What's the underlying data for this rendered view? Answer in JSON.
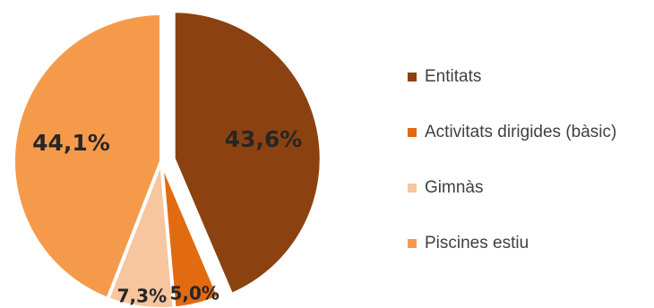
{
  "chart_data": {
    "type": "pie",
    "series": [
      {
        "labels": [
          "Entitats",
          "Activitats dirigides (bàsic)",
          "Gimnàs",
          "Piscines estiu"
        ],
        "values": [
          43.6,
          5.0,
          7.3,
          44.1
        ],
        "data_labels": [
          "43,6%",
          "5,0%",
          "7,3%",
          "44,1%"
        ],
        "colors": [
          "#8B4210",
          "#E26A10",
          "#F7C59E",
          "#F59A4B"
        ]
      }
    ],
    "exploded_slice": "Entitats",
    "legend_position": "right"
  }
}
